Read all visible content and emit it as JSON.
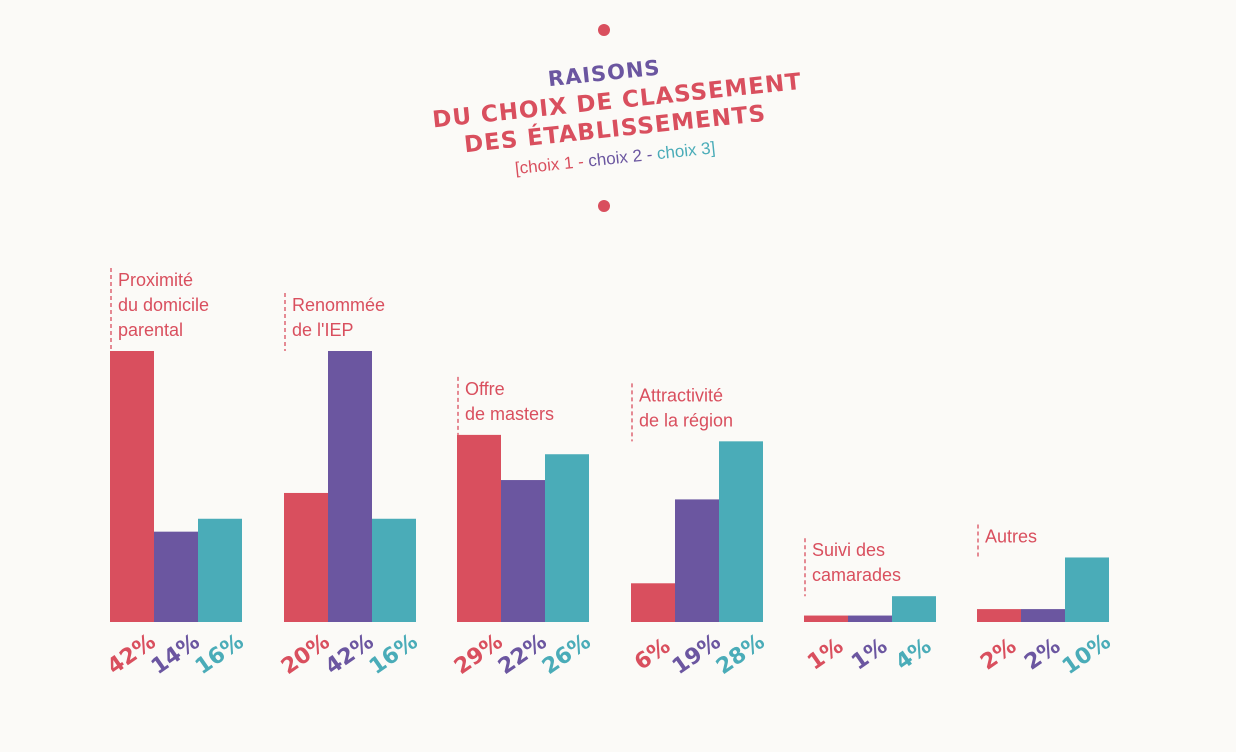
{
  "title": {
    "line1": "RAISONS",
    "line2": "DU CHOIX DE CLASSEMENT",
    "line3": "DES ÉTABLISSEMENTS",
    "bracket_open": "[",
    "legend1": "choix 1",
    "sep1": " - ",
    "legend2": "choix 2",
    "sep2": " - ",
    "legend3": "choix 3",
    "bracket_close": "]"
  },
  "colors": {
    "choix1": "#d94f5e",
    "choix2": "#6b56a0",
    "choix3": "#4aacb8"
  },
  "chart_data": {
    "type": "bar",
    "categories": [
      [
        "Proximité",
        "du domicile",
        "parental"
      ],
      [
        "Renommée",
        "de l'IEP"
      ],
      [
        "Offre",
        "de masters"
      ],
      [
        "Attractivité",
        "de la région"
      ],
      [
        "Suivi des",
        "camarades"
      ],
      [
        "Autres"
      ]
    ],
    "series": [
      {
        "name": "choix 1",
        "values": [
          42,
          20,
          29,
          6,
          1,
          2
        ]
      },
      {
        "name": "choix 2",
        "values": [
          14,
          42,
          22,
          19,
          1,
          2
        ]
      },
      {
        "name": "choix 3",
        "values": [
          16,
          16,
          26,
          28,
          4,
          10
        ]
      }
    ],
    "value_labels": [
      [
        "42%",
        "14%",
        "16%"
      ],
      [
        "20%",
        "42%",
        "16%"
      ],
      [
        "29%",
        "22%",
        "26%"
      ],
      [
        "6%",
        "19%",
        "28%"
      ],
      [
        "1%",
        "1%",
        "4%"
      ],
      [
        "2%",
        "2%",
        "10%"
      ]
    ],
    "unit": "%",
    "ylim": [
      0,
      42
    ],
    "grid": false,
    "legend": "top-center"
  }
}
